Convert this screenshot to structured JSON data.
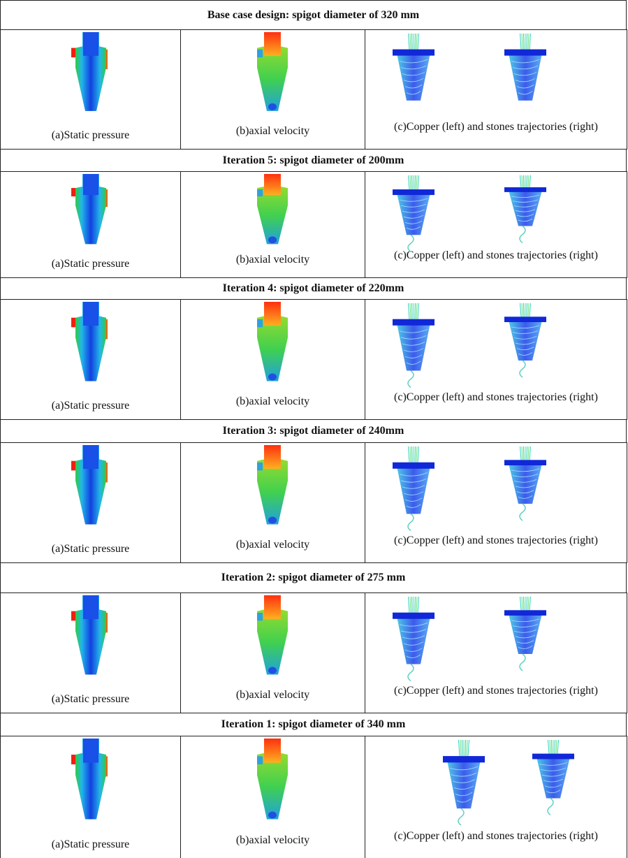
{
  "sections": [
    {
      "title": "Base case design: spigot diameter of 320 mm",
      "captions": [
        "(a)Static pressure",
        "(b)axial velocity",
        "(c)Copper (left) and stones trajectories (right)"
      ]
    },
    {
      "title": "Iteration 5:  spigot diameter of 200mm",
      "captions": [
        "(a)Static pressure",
        "(b)axial velocity",
        "(c)Copper (left) and stones trajectories (right)"
      ]
    },
    {
      "title": "Iteration 4:  spigot diameter of 220mm",
      "captions": [
        "(a)Static pressure",
        "(b)axial velocity",
        "(c)Copper (left) and stones trajectories (right)"
      ]
    },
    {
      "title": "Iteration 3:  spigot diameter of 240mm",
      "captions": [
        "(a)Static pressure",
        "(b)axial velocity",
        "(c)Copper (left) and stones trajectories (right)"
      ]
    },
    {
      "title": "Iteration 2:  spigot diameter of 275 mm",
      "captions": [
        "(a)Static pressure",
        "(b)axial velocity",
        "(c)Copper (left) and stones trajectories (right)"
      ]
    },
    {
      "title": "Iteration 1:  spigot diameter of 340 mm",
      "captions": [
        "(a)Static pressure",
        "(b)axial velocity",
        "(c)Copper (left) and stones trajectories (right)"
      ]
    }
  ]
}
